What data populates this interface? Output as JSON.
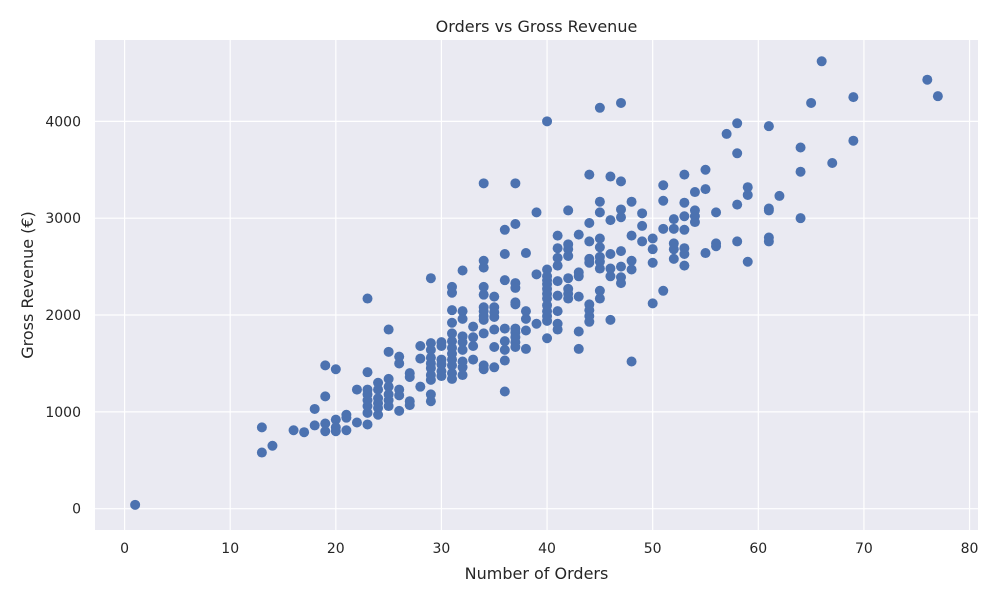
{
  "chart_data": {
    "type": "scatter",
    "title": "Orders vs Gross Revenue",
    "xlabel": "Number of Orders",
    "ylabel": "Gross Revenue (€)",
    "xlim": [
      -2.8,
      80.8
    ],
    "ylim": [
      -220,
      4840
    ],
    "xticks": [
      0,
      10,
      20,
      30,
      40,
      50,
      60,
      70,
      80
    ],
    "yticks": [
      0,
      1000,
      2000,
      3000,
      4000
    ],
    "grid": true,
    "legend": "none",
    "colors": {
      "background": "#eaeaf2",
      "grid": "#ffffff",
      "marker": "#4c72b0",
      "text": "#262626"
    },
    "points": [
      [
        1,
        40
      ],
      [
        13,
        840
      ],
      [
        13,
        580
      ],
      [
        14,
        650
      ],
      [
        16,
        810
      ],
      [
        17,
        790
      ],
      [
        18,
        860
      ],
      [
        18,
        1030
      ],
      [
        19,
        1160
      ],
      [
        19,
        1480
      ],
      [
        19,
        880
      ],
      [
        19,
        800
      ],
      [
        20,
        1440
      ],
      [
        20,
        920
      ],
      [
        20,
        840
      ],
      [
        20,
        800
      ],
      [
        21,
        970
      ],
      [
        21,
        940
      ],
      [
        21,
        810
      ],
      [
        22,
        1230
      ],
      [
        22,
        890
      ],
      [
        23,
        2170
      ],
      [
        23,
        1410
      ],
      [
        23,
        1230
      ],
      [
        23,
        1180
      ],
      [
        23,
        1120
      ],
      [
        23,
        1060
      ],
      [
        23,
        990
      ],
      [
        23,
        870
      ],
      [
        24,
        1300
      ],
      [
        24,
        1230
      ],
      [
        24,
        1140
      ],
      [
        24,
        1090
      ],
      [
        24,
        1040
      ],
      [
        24,
        970
      ],
      [
        25,
        1850
      ],
      [
        25,
        1620
      ],
      [
        25,
        1340
      ],
      [
        25,
        1260
      ],
      [
        25,
        1180
      ],
      [
        25,
        1120
      ],
      [
        25,
        1060
      ],
      [
        26,
        1570
      ],
      [
        26,
        1500
      ],
      [
        26,
        1230
      ],
      [
        26,
        1170
      ],
      [
        26,
        1010
      ],
      [
        27,
        1400
      ],
      [
        27,
        1360
      ],
      [
        27,
        1110
      ],
      [
        27,
        1070
      ],
      [
        28,
        1680
      ],
      [
        28,
        1550
      ],
      [
        28,
        1260
      ],
      [
        29,
        2380
      ],
      [
        29,
        1710
      ],
      [
        29,
        1640
      ],
      [
        29,
        1560
      ],
      [
        29,
        1500
      ],
      [
        29,
        1450
      ],
      [
        29,
        1380
      ],
      [
        29,
        1330
      ],
      [
        29,
        1180
      ],
      [
        29,
        1110
      ],
      [
        30,
        1720
      ],
      [
        30,
        1680
      ],
      [
        30,
        1540
      ],
      [
        30,
        1490
      ],
      [
        30,
        1420
      ],
      [
        30,
        1370
      ],
      [
        31,
        2290
      ],
      [
        31,
        2230
      ],
      [
        31,
        2050
      ],
      [
        31,
        1920
      ],
      [
        31,
        1810
      ],
      [
        31,
        1730
      ],
      [
        31,
        1660
      ],
      [
        31,
        1600
      ],
      [
        31,
        1540
      ],
      [
        31,
        1480
      ],
      [
        31,
        1400
      ],
      [
        31,
        1340
      ],
      [
        32,
        2460
      ],
      [
        32,
        2040
      ],
      [
        32,
        1960
      ],
      [
        32,
        1780
      ],
      [
        32,
        1720
      ],
      [
        32,
        1640
      ],
      [
        32,
        1520
      ],
      [
        32,
        1460
      ],
      [
        32,
        1380
      ],
      [
        33,
        1880
      ],
      [
        33,
        1770
      ],
      [
        33,
        1680
      ],
      [
        33,
        1540
      ],
      [
        34,
        3360
      ],
      [
        34,
        2560
      ],
      [
        34,
        2490
      ],
      [
        34,
        2290
      ],
      [
        34,
        2210
      ],
      [
        34,
        2080
      ],
      [
        34,
        2040
      ],
      [
        34,
        1990
      ],
      [
        34,
        1950
      ],
      [
        34,
        1810
      ],
      [
        34,
        1480
      ],
      [
        34,
        1440
      ],
      [
        35,
        2190
      ],
      [
        35,
        2080
      ],
      [
        35,
        2030
      ],
      [
        35,
        1980
      ],
      [
        35,
        1850
      ],
      [
        35,
        1670
      ],
      [
        35,
        1460
      ],
      [
        36,
        2880
      ],
      [
        36,
        2630
      ],
      [
        36,
        2360
      ],
      [
        36,
        1860
      ],
      [
        36,
        1730
      ],
      [
        36,
        1640
      ],
      [
        36,
        1530
      ],
      [
        36,
        1210
      ],
      [
        37,
        3360
      ],
      [
        37,
        2940
      ],
      [
        37,
        2330
      ],
      [
        37,
        2280
      ],
      [
        37,
        2130
      ],
      [
        37,
        2110
      ],
      [
        37,
        1860
      ],
      [
        37,
        1820
      ],
      [
        37,
        1770
      ],
      [
        37,
        1720
      ],
      [
        37,
        1670
      ],
      [
        38,
        2640
      ],
      [
        38,
        2040
      ],
      [
        38,
        1960
      ],
      [
        38,
        1840
      ],
      [
        38,
        1650
      ],
      [
        39,
        3060
      ],
      [
        39,
        2420
      ],
      [
        39,
        1910
      ],
      [
        40,
        4000
      ],
      [
        40,
        2470
      ],
      [
        40,
        2400
      ],
      [
        40,
        2360
      ],
      [
        40,
        2320
      ],
      [
        40,
        2270
      ],
      [
        40,
        2220
      ],
      [
        40,
        2170
      ],
      [
        40,
        2100
      ],
      [
        40,
        2040
      ],
      [
        40,
        1990
      ],
      [
        40,
        1940
      ],
      [
        40,
        1760
      ],
      [
        41,
        2820
      ],
      [
        41,
        2690
      ],
      [
        41,
        2590
      ],
      [
        41,
        2510
      ],
      [
        41,
        2350
      ],
      [
        41,
        2200
      ],
      [
        41,
        2040
      ],
      [
        41,
        1910
      ],
      [
        41,
        1850
      ],
      [
        42,
        3080
      ],
      [
        42,
        2730
      ],
      [
        42,
        2680
      ],
      [
        42,
        2610
      ],
      [
        42,
        2380
      ],
      [
        42,
        2270
      ],
      [
        42,
        2220
      ],
      [
        42,
        2170
      ],
      [
        43,
        2830
      ],
      [
        43,
        2440
      ],
      [
        43,
        2400
      ],
      [
        43,
        2190
      ],
      [
        43,
        1830
      ],
      [
        43,
        1650
      ],
      [
        44,
        3450
      ],
      [
        44,
        2950
      ],
      [
        44,
        2760
      ],
      [
        44,
        2580
      ],
      [
        44,
        2540
      ],
      [
        44,
        2110
      ],
      [
        44,
        2050
      ],
      [
        44,
        1990
      ],
      [
        44,
        1930
      ],
      [
        45,
        4140
      ],
      [
        45,
        3170
      ],
      [
        45,
        3060
      ],
      [
        45,
        2790
      ],
      [
        45,
        2700
      ],
      [
        45,
        2600
      ],
      [
        45,
        2550
      ],
      [
        45,
        2480
      ],
      [
        45,
        2250
      ],
      [
        45,
        2170
      ],
      [
        46,
        3430
      ],
      [
        46,
        2980
      ],
      [
        46,
        2630
      ],
      [
        46,
        2480
      ],
      [
        46,
        2400
      ],
      [
        46,
        1950
      ],
      [
        47,
        4190
      ],
      [
        47,
        3380
      ],
      [
        47,
        3090
      ],
      [
        47,
        3010
      ],
      [
        47,
        2660
      ],
      [
        47,
        2500
      ],
      [
        47,
        2390
      ],
      [
        47,
        2330
      ],
      [
        48,
        3170
      ],
      [
        48,
        2820
      ],
      [
        48,
        2560
      ],
      [
        48,
        2470
      ],
      [
        48,
        1520
      ],
      [
        49,
        3050
      ],
      [
        49,
        2920
      ],
      [
        49,
        2760
      ],
      [
        50,
        2790
      ],
      [
        50,
        2680
      ],
      [
        50,
        2540
      ],
      [
        50,
        2120
      ],
      [
        51,
        3340
      ],
      [
        51,
        3180
      ],
      [
        51,
        2890
      ],
      [
        51,
        2250
      ],
      [
        52,
        2990
      ],
      [
        52,
        2890
      ],
      [
        52,
        2740
      ],
      [
        52,
        2680
      ],
      [
        52,
        2580
      ],
      [
        53,
        3450
      ],
      [
        53,
        3160
      ],
      [
        53,
        3020
      ],
      [
        53,
        2880
      ],
      [
        53,
        2690
      ],
      [
        53,
        2630
      ],
      [
        53,
        2510
      ],
      [
        54,
        3270
      ],
      [
        54,
        3080
      ],
      [
        54,
        3020
      ],
      [
        54,
        2960
      ],
      [
        55,
        3500
      ],
      [
        55,
        3300
      ],
      [
        55,
        2640
      ],
      [
        56,
        3060
      ],
      [
        56,
        2740
      ],
      [
        56,
        2710
      ],
      [
        57,
        3870
      ],
      [
        58,
        3980
      ],
      [
        58,
        3670
      ],
      [
        58,
        3140
      ],
      [
        58,
        2760
      ],
      [
        59,
        3320
      ],
      [
        59,
        3240
      ],
      [
        59,
        2550
      ],
      [
        61,
        3950
      ],
      [
        61,
        3100
      ],
      [
        61,
        3080
      ],
      [
        61,
        2800
      ],
      [
        61,
        2760
      ],
      [
        62,
        3230
      ],
      [
        64,
        3730
      ],
      [
        64,
        3480
      ],
      [
        64,
        3000
      ],
      [
        65,
        4190
      ],
      [
        66,
        4620
      ],
      [
        67,
        3570
      ],
      [
        69,
        4250
      ],
      [
        69,
        3800
      ],
      [
        76,
        4430
      ],
      [
        77,
        4260
      ]
    ]
  }
}
